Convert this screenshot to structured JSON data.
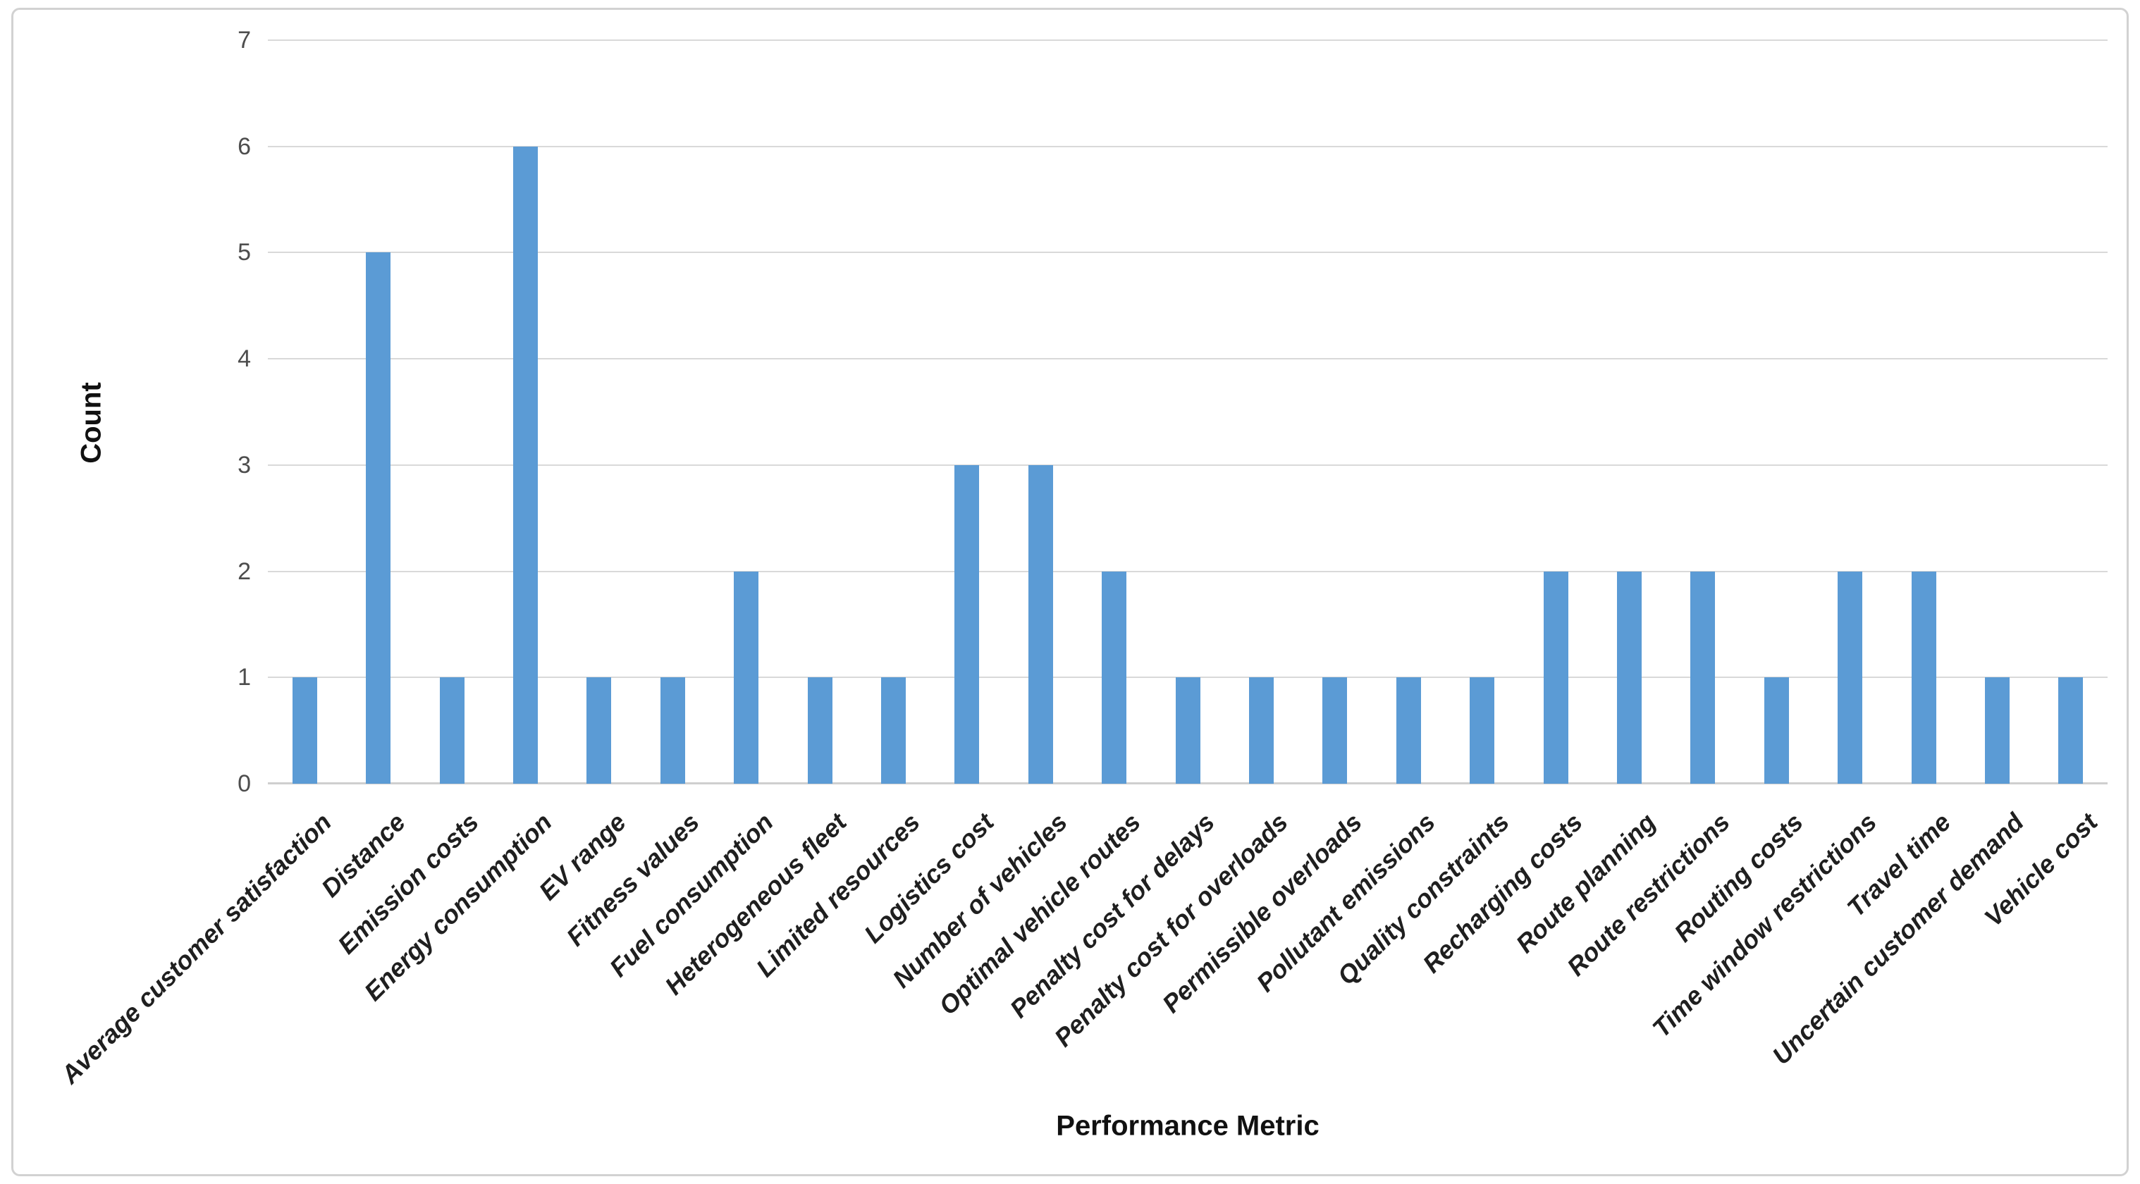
{
  "figure": {
    "background": "#ffffff",
    "border_color": "#d2d2d2"
  },
  "chart_data": {
    "type": "bar",
    "title": "",
    "xlabel": "Performance Metric",
    "ylabel": "Count",
    "categories": [
      "Average customer satisfaction",
      "Distance",
      "Emission costs",
      "Energy consumption",
      "EV range",
      "Fitness values",
      "Fuel consumption",
      "Heterogeneous fleet",
      "Limited resources",
      "Logistics cost",
      "Number of vehicles",
      "Optimal vehicle routes",
      "Penalty cost for delays",
      "Penalty cost for overloads",
      "Permissible overloads",
      "Pollutant emissions",
      "Quality constraints",
      "Recharging costs",
      "Route planning",
      "Route restrictions",
      "Routing costs",
      "Time window restrictions",
      "Travel time",
      "Uncertain customer demand",
      "Vehicle cost"
    ],
    "values": [
      1,
      5,
      1,
      6,
      1,
      1,
      2,
      1,
      1,
      3,
      3,
      2,
      1,
      1,
      1,
      1,
      1,
      2,
      2,
      2,
      1,
      2,
      2,
      1,
      1
    ],
    "ylim": [
      0,
      7
    ],
    "yticks": [
      0,
      1,
      2,
      3,
      4,
      5,
      6,
      7
    ],
    "grid": "horizontal",
    "legend": "none",
    "bar_color": "#5B9BD5",
    "gridline_color": "#D9D9D9",
    "axis_line_color": "#CFCFCF",
    "tick_label_color": "#4D4D4D",
    "category_label_color": "#1F1F1F",
    "axis_title_color": "#111111"
  }
}
